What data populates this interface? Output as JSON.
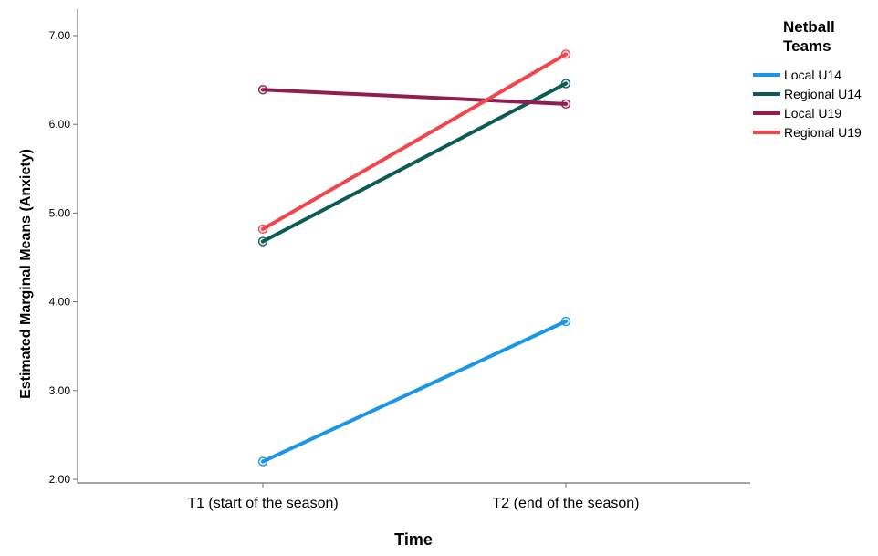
{
  "chart_data": {
    "type": "line",
    "title": "",
    "xlabel": "Time",
    "ylabel": "Estimated Marginal Means (Anxiety)",
    "categories": [
      "T1 (start of the season)",
      "T2 (end of the season)"
    ],
    "ylim": [
      2.0,
      7.3
    ],
    "yticks": [
      2.0,
      3.0,
      4.0,
      5.0,
      6.0,
      7.0
    ],
    "ytick_labels": [
      "2.00",
      "3.00",
      "4.00",
      "5.00",
      "6.00",
      "7.00"
    ],
    "grid": false,
    "legend": {
      "title_lines": [
        "Netball",
        "Teams"
      ],
      "placement": "top-right, outside plot"
    },
    "series": [
      {
        "name": "Local U14",
        "color": "#1b96e6",
        "values": [
          2.2,
          3.78
        ]
      },
      {
        "name": "Regional U14",
        "color": "#0d5c54",
        "values": [
          4.68,
          6.46
        ]
      },
      {
        "name": "Local U19",
        "color": "#8f1d52",
        "values": [
          6.39,
          6.23
        ]
      },
      {
        "name": "Regional U19",
        "color": "#f0464c",
        "values": [
          4.82,
          6.79
        ]
      }
    ]
  }
}
